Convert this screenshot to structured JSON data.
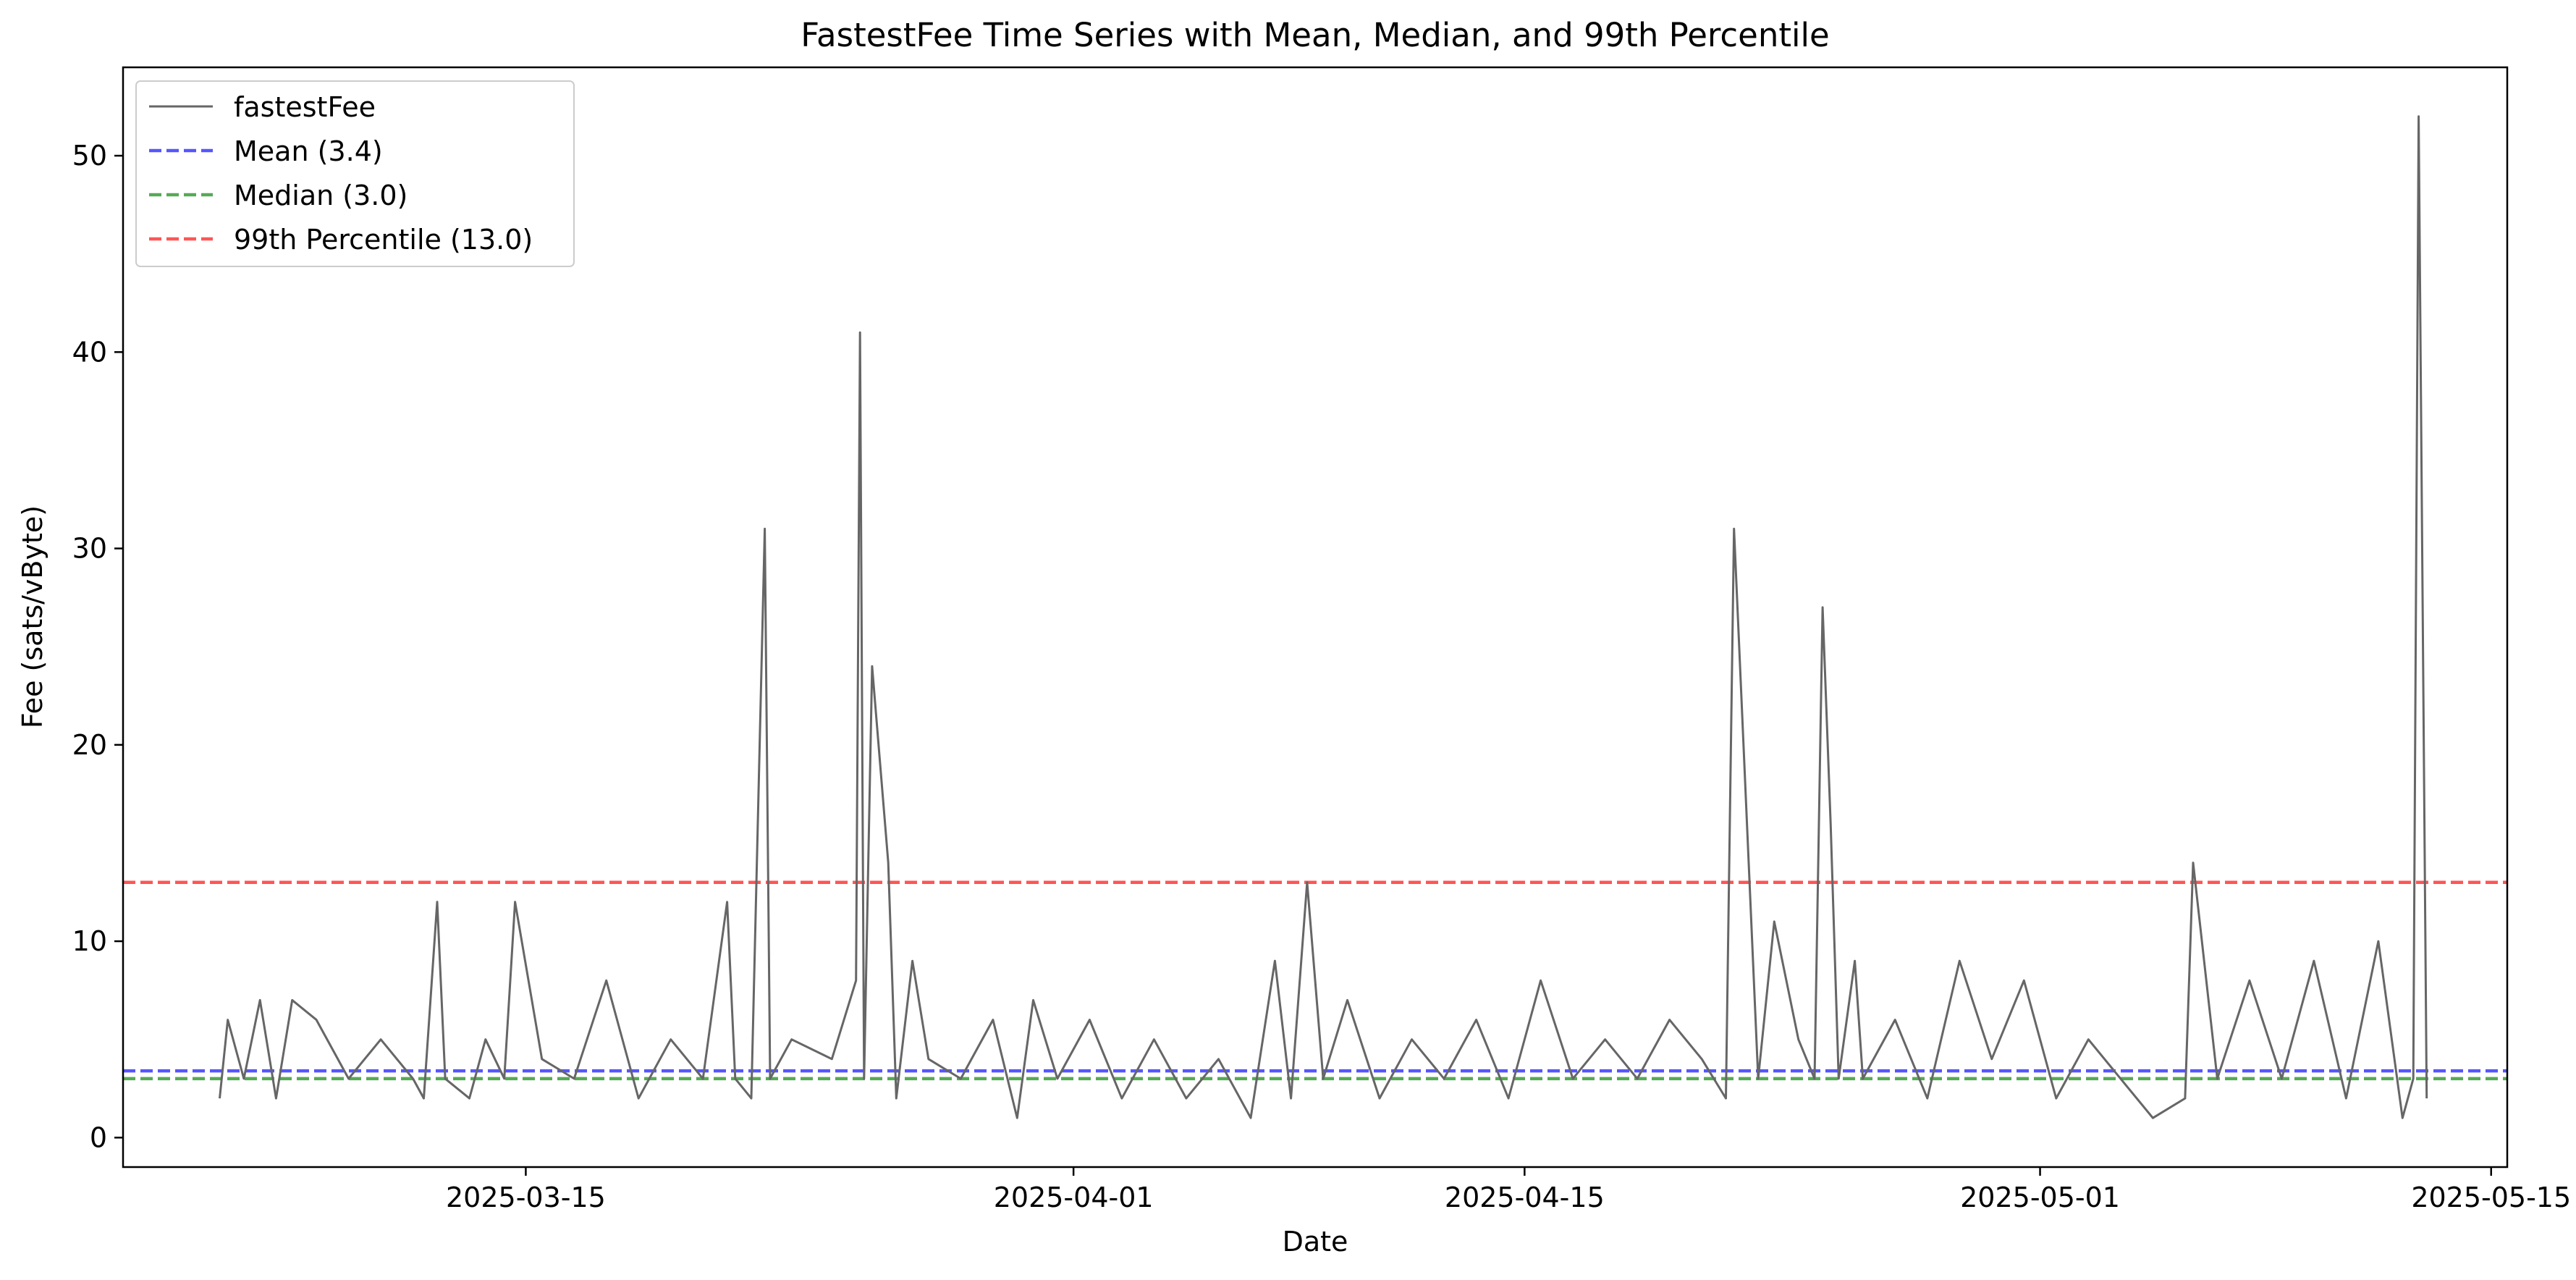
{
  "chart_data": {
    "type": "line",
    "title": "FastestFee Time Series with Mean, Median, and 99th Percentile",
    "xlabel": "Date",
    "ylabel": "Fee (sats/vByte)",
    "xlim": [
      "2025-03-02T12:00",
      "2025-05-15T12:00"
    ],
    "ylim": [
      -1.5,
      54.5
    ],
    "x_ticks": [
      "2025-03-15",
      "2025-04-01",
      "2025-04-15",
      "2025-05-01",
      "2025-05-15"
    ],
    "y_ticks": [
      0,
      10,
      20,
      30,
      40,
      50
    ],
    "grid": false,
    "legend_position": "upper-left",
    "colors": {
      "series": "#666666",
      "mean": "#5555ff",
      "median": "#55aa55",
      "p99": "#ff5555"
    },
    "series": [
      {
        "name": "fastestFee",
        "color": "#666666",
        "x": [
          "2025-03-05T12:00",
          "2025-03-05T18:00",
          "2025-03-06T06:00",
          "2025-03-06T18:00",
          "2025-03-07T06:00",
          "2025-03-07T18:00",
          "2025-03-08T12:00",
          "2025-03-09T12:00",
          "2025-03-10T12:00",
          "2025-03-11T12:00",
          "2025-03-11T20:00",
          "2025-03-12T06:00",
          "2025-03-12T12:00",
          "2025-03-13T06:00",
          "2025-03-13T18:00",
          "2025-03-14T08:00",
          "2025-03-14T16:00",
          "2025-03-15T12:00",
          "2025-03-16T12:00",
          "2025-03-17T12:00",
          "2025-03-18T12:00",
          "2025-03-19T12:00",
          "2025-03-20T12:00",
          "2025-03-21T06:00",
          "2025-03-21T12:00",
          "2025-03-22T00:00",
          "2025-03-22T10:00",
          "2025-03-22T14:00",
          "2025-03-23T06:00",
          "2025-03-24T12:00",
          "2025-03-25T06:00",
          "2025-03-25T09:00",
          "2025-03-25T12:00",
          "2025-03-25T18:00",
          "2025-03-26T06:00",
          "2025-03-26T12:00",
          "2025-03-27T00:00",
          "2025-03-27T12:00",
          "2025-03-28T12:00",
          "2025-03-29T12:00",
          "2025-03-30T06:00",
          "2025-03-30T18:00",
          "2025-03-31T12:00",
          "2025-04-01T12:00",
          "2025-04-02T12:00",
          "2025-04-03T12:00",
          "2025-04-04T12:00",
          "2025-04-05T12:00",
          "2025-04-06T12:00",
          "2025-04-07T06:00",
          "2025-04-07T18:00",
          "2025-04-08T06:00",
          "2025-04-08T18:00",
          "2025-04-09T12:00",
          "2025-04-10T12:00",
          "2025-04-11T12:00",
          "2025-04-12T12:00",
          "2025-04-13T12:00",
          "2025-04-14T12:00",
          "2025-04-15T12:00",
          "2025-04-16T12:00",
          "2025-04-17T12:00",
          "2025-04-18T12:00",
          "2025-04-19T12:00",
          "2025-04-20T12:00",
          "2025-04-21T06:00",
          "2025-04-21T12:00",
          "2025-04-22T06:00",
          "2025-04-22T18:00",
          "2025-04-23T12:00",
          "2025-04-24T00:00",
          "2025-04-24T06:00",
          "2025-04-24T12:00",
          "2025-04-24T18:00",
          "2025-04-25T06:00",
          "2025-04-25T12:00",
          "2025-04-26T12:00",
          "2025-04-27T12:00",
          "2025-04-28T12:00",
          "2025-04-29T12:00",
          "2025-04-30T12:00",
          "2025-05-01T12:00",
          "2025-05-02T12:00",
          "2025-05-03T12:00",
          "2025-05-04T12:00",
          "2025-05-05T12:00",
          "2025-05-05T18:00",
          "2025-05-06T12:00",
          "2025-05-07T12:00",
          "2025-05-08T12:00",
          "2025-05-09T12:00",
          "2025-05-10T12:00",
          "2025-05-11T12:00",
          "2025-05-12T06:00",
          "2025-05-12T14:00",
          "2025-05-12T18:00",
          "2025-05-13T00:00"
        ],
        "y": [
          2,
          6,
          3,
          7,
          2,
          7,
          6,
          3,
          5,
          3,
          2,
          12,
          3,
          2,
          5,
          3,
          12,
          4,
          3,
          8,
          2,
          5,
          3,
          12,
          3,
          2,
          31,
          3,
          5,
          4,
          8,
          41,
          3,
          24,
          14,
          2,
          9,
          4,
          3,
          6,
          1,
          7,
          3,
          6,
          2,
          5,
          2,
          4,
          1,
          9,
          2,
          13,
          3,
          7,
          2,
          5,
          3,
          6,
          2,
          8,
          3,
          5,
          3,
          6,
          4,
          2,
          31,
          3,
          11,
          5,
          3,
          27,
          16,
          3,
          9,
          3,
          6,
          2,
          9,
          4,
          8,
          2,
          5,
          3,
          1,
          2,
          14,
          3,
          8,
          3,
          9,
          2,
          10,
          1,
          3,
          52,
          2
        ]
      }
    ],
    "hlines": [
      {
        "name": "Mean (3.4)",
        "value": 3.4,
        "color": "#5555ff"
      },
      {
        "name": "Median (3.0)",
        "value": 3.0,
        "color": "#55aa55"
      },
      {
        "name": "99th Percentile (13.0)",
        "value": 13.0,
        "color": "#ff5555"
      }
    ]
  }
}
